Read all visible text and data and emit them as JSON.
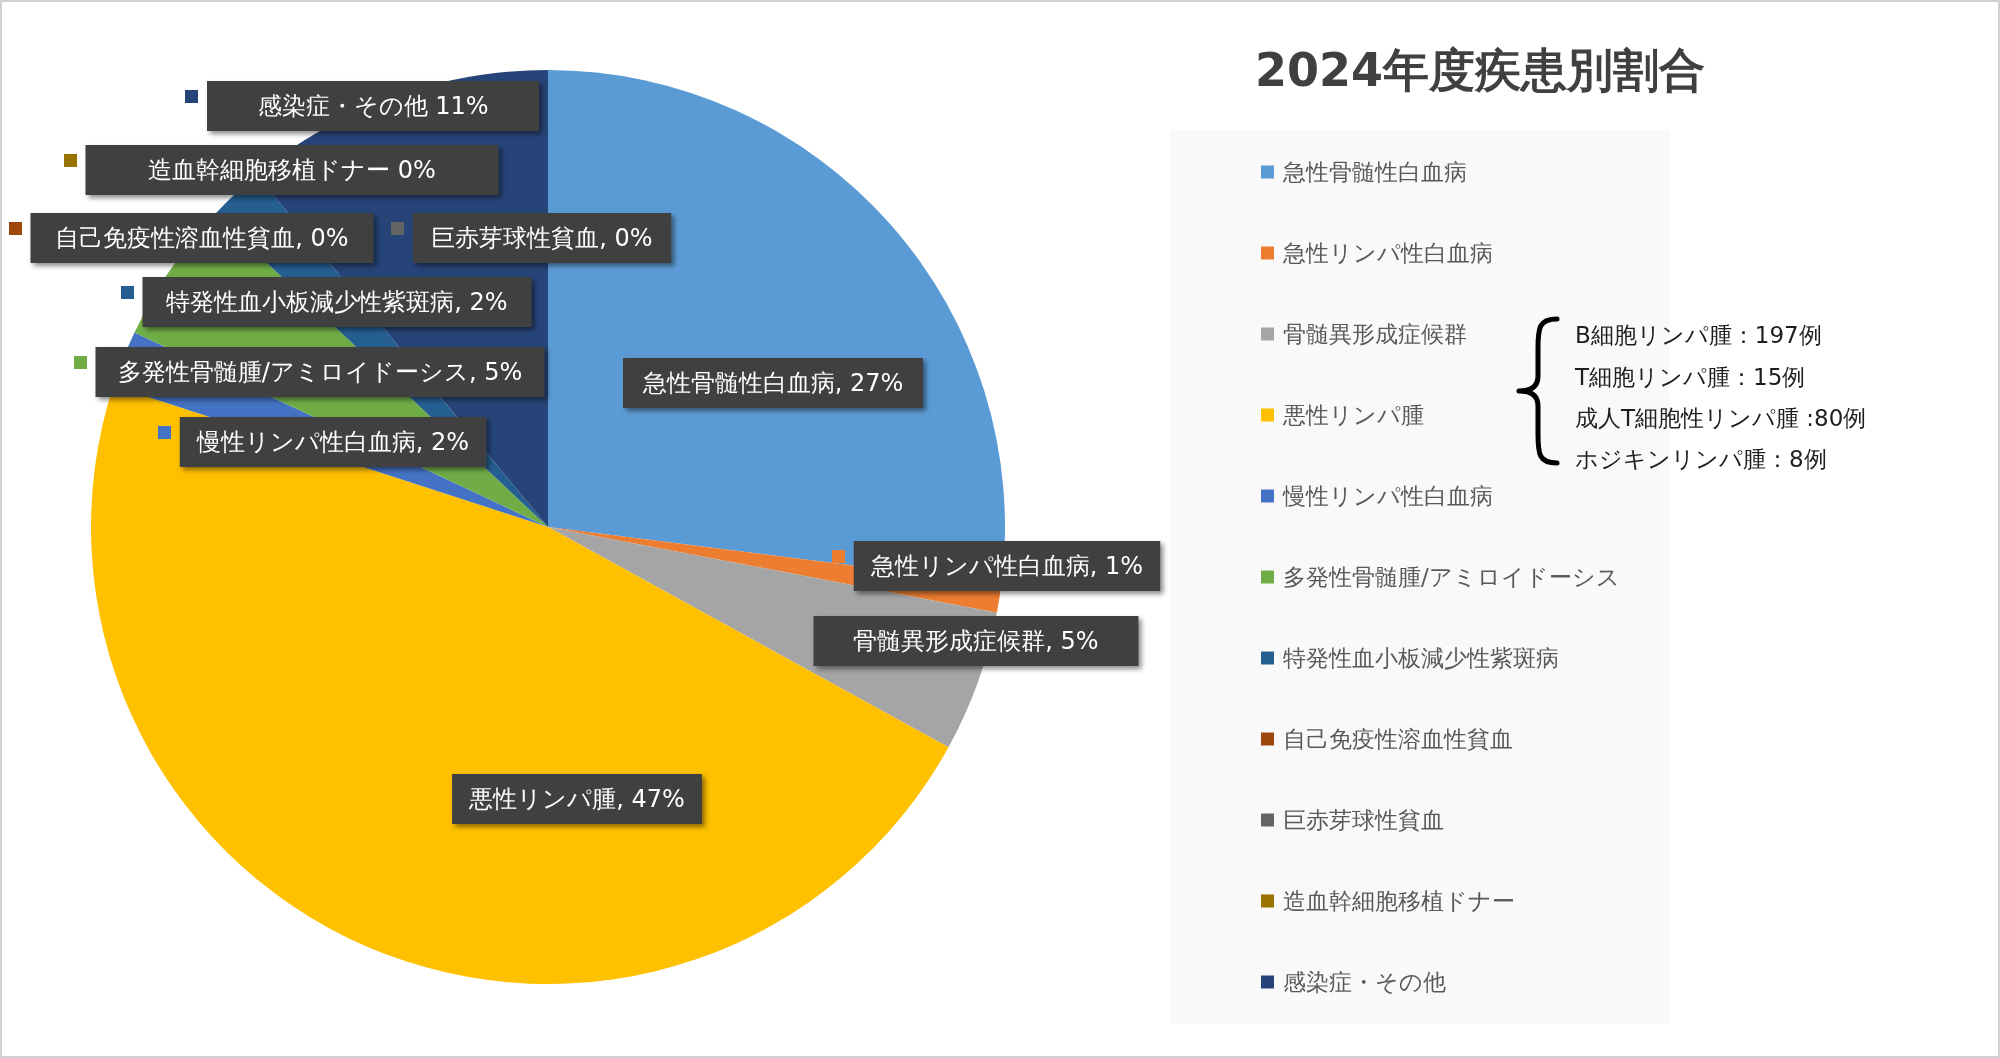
{
  "chart_data": {
    "type": "pie",
    "title": "2024年度疾患別割合",
    "categories": [
      "急性骨髄性白血病",
      "急性リンパ性白血病",
      "骨髄異形成症候群",
      "悪性リンパ腫",
      "慢性リンパ性白血病",
      "多発性骨髄腫/アミロイドーシス",
      "特発性血小板減少性紫斑病",
      "自己免疫性溶血性貧血",
      "巨赤芽球性貧血",
      "造血幹細胞移植ドナー",
      "感染症・その他"
    ],
    "values": [
      27,
      1,
      5,
      47,
      2,
      5,
      2,
      0,
      0,
      0,
      11
    ],
    "colors": [
      "#5b9bd5",
      "#ed7d31",
      "#a5a5a5",
      "#ffc000",
      "#4472c4",
      "#70ad47",
      "#255e91",
      "#9e480e",
      "#636363",
      "#997300",
      "#264478"
    ],
    "value_labels": [
      "急性骨髄性白血病, 27%",
      "急性リンパ性白血病, 1%",
      "骨髄異形成症候群, 5%",
      "悪性リンパ腫, 47%",
      "慢性リンパ性白血病, 2%",
      "多発性骨髄腫/アミロイドーシス, 5%",
      "特発性血小板減少性紫斑病, 2%",
      "自己免疫性溶血性貧血, 0%",
      "巨赤芽球性貧血, 0%",
      "造血幹細胞移植ドナー 0%",
      "感染症・その他 11%"
    ],
    "legend": "right",
    "annotations": [
      "B細胞リンパ腫：197例",
      "T細胞リンパ腫：15例",
      "成人T細胞性リンパ腫 :80例",
      "ホジキンリンパ腫：8例"
    ]
  }
}
